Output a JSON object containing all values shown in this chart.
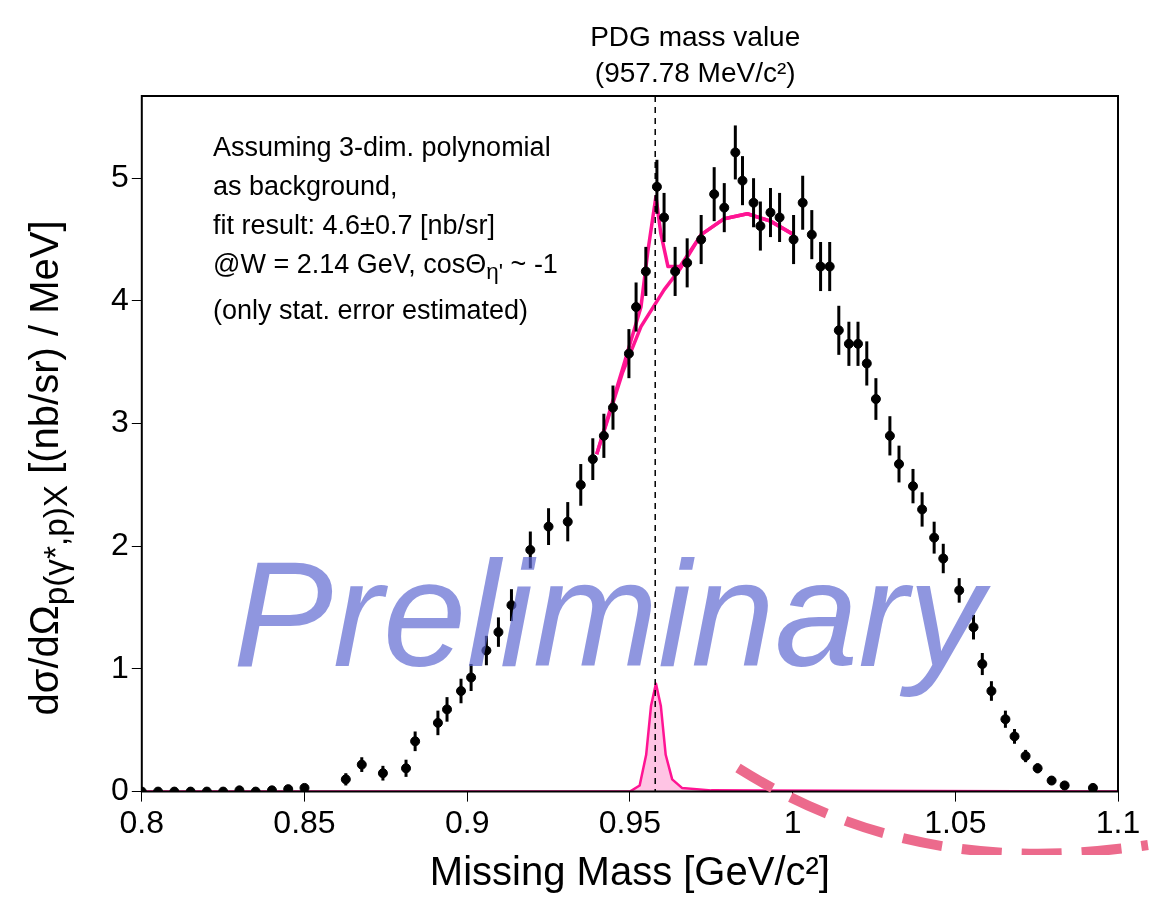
{
  "chart_data": {
    "type": "scatter",
    "xlabel": "Missing Mass [GeV/c²]",
    "ylabel": "dσ/dΩ$_{p(γ*,p)X}$ [(nb/sr) / MeV]",
    "xlim": [
      0.8,
      1.1
    ],
    "xticks": [
      0.8,
      0.85,
      0.9,
      0.95,
      1,
      1.05,
      1.1
    ],
    "ylim": [
      0,
      5.67
    ],
    "yticks": [
      0,
      1,
      2,
      3,
      4,
      5
    ],
    "grid": false,
    "annotations": [
      "Assuming 3-dim. polynomial",
      "as background,",
      "fit result: 4.6±0.7 [nb/sr]",
      "@W = 2.14 GeV, cosΘ$_{η'}$ ~ -1",
      "(only stat. error estimated)",
      "Preliminary"
    ],
    "ref_lines": [
      {
        "axis": "x",
        "value": 0.95778,
        "label": "PDG mass value\n(957.78 MeV/c²)",
        "color": "#000000",
        "line_style": "dashed"
      }
    ],
    "series": [
      {
        "color": "#000000",
        "marker": "circle",
        "x": [
          0.8,
          0.805,
          0.81,
          0.815,
          0.82,
          0.825,
          0.83,
          0.835,
          0.84,
          0.845,
          0.85,
          0.8627,
          0.8676,
          0.8741,
          0.8812,
          0.884,
          0.891,
          0.8938,
          0.8981,
          0.9012,
          0.9059,
          0.9096,
          0.9136,
          0.9194,
          0.925,
          0.9309,
          0.9349,
          0.9386,
          0.942,
          0.9448,
          0.9497,
          0.9519,
          0.9549,
          0.9583,
          0.9605,
          0.9639,
          0.9676,
          0.9719,
          0.9759,
          0.979,
          0.9824,
          0.9846,
          0.988,
          0.9901,
          0.9932,
          0.996,
          1.0003,
          1.0031,
          1.0059,
          1.0086,
          1.0114,
          1.0142,
          1.0173,
          1.0201,
          1.0228,
          1.0256,
          1.0299,
          1.0327,
          1.037,
          1.0398,
          1.0435,
          1.0463,
          1.0512,
          1.0556,
          1.0583,
          1.0611,
          1.0654,
          1.0682,
          1.0716,
          1.0753,
          1.0796,
          1.0836,
          1.0923
        ],
        "values": [
          0,
          0,
          0,
          0,
          0,
          0,
          0.01,
          0,
          0.01,
          0.02,
          0.03,
          0.1,
          0.22,
          0.15,
          0.19,
          0.41,
          0.56,
          0.67,
          0.82,
          0.93,
          1.15,
          1.3,
          1.52,
          1.97,
          2.16,
          2.2,
          2.5,
          2.71,
          2.9,
          3.13,
          3.57,
          3.95,
          4.24,
          4.93,
          4.68,
          4.24,
          4.31,
          4.5,
          4.87,
          4.76,
          5.21,
          4.98,
          4.8,
          4.61,
          4.72,
          4.68,
          4.5,
          4.8,
          4.54,
          4.28,
          4.28,
          3.76,
          3.65,
          3.65,
          3.49,
          3.2,
          2.9,
          2.67,
          2.49,
          2.3,
          2.07,
          1.9,
          1.64,
          1.34,
          1.04,
          0.82,
          0.59,
          0.45,
          0.29,
          0.19,
          0.09,
          0.05,
          0.03
        ],
        "errors": [
          null,
          null,
          null,
          null,
          null,
          null,
          null,
          null,
          null,
          null,
          0.03,
          0.05,
          0.06,
          0.06,
          0.07,
          0.08,
          0.1,
          0.1,
          0.1,
          0.11,
          0.12,
          0.12,
          0.13,
          0.15,
          0.15,
          0.16,
          0.17,
          0.17,
          0.18,
          0.18,
          0.2,
          0.2,
          0.2,
          0.22,
          0.2,
          0.2,
          0.2,
          0.2,
          0.22,
          0.2,
          0.22,
          0.2,
          0.2,
          0.2,
          0.2,
          0.2,
          0.2,
          0.22,
          0.2,
          0.2,
          0.2,
          0.2,
          0.18,
          0.18,
          0.18,
          0.17,
          0.16,
          0.15,
          0.14,
          0.14,
          0.13,
          0.12,
          0.1,
          0.1,
          0.09,
          0.08,
          0.07,
          0.06,
          0.05,
          0.04,
          0.03,
          0.02,
          0.02
        ]
      },
      {
        "type": "line",
        "color": "#ff1493",
        "x": [
          0.9398,
          0.9478,
          0.9534,
          0.9555,
          0.958,
          0.9595,
          0.9617,
          0.9654,
          0.9719,
          0.979,
          0.9861,
          0.9932,
          1.0003
        ],
        "values": [
          2.75,
          3.45,
          3.95,
          4.4,
          4.85,
          4.55,
          4.28,
          4.28,
          4.54,
          4.67,
          4.71,
          4.65,
          4.54
        ]
      },
      {
        "type": "line",
        "color": "#ff1493",
        "x": [
          0.9398,
          0.9478,
          0.9534,
          0.9605,
          0.9654,
          0.9719,
          0.979,
          0.9861,
          0.9932,
          1.0003
        ],
        "values": [
          2.75,
          3.42,
          3.79,
          4.09,
          4.26,
          4.54,
          4.67,
          4.71,
          4.65,
          4.54
        ]
      },
      {
        "type": "area",
        "color": "#ff1493",
        "x": [
          0.8,
          0.95,
          0.953,
          0.955,
          0.9565,
          0.958,
          0.9595,
          0.961,
          0.963,
          0.966,
          0.975,
          1.1
        ],
        "values": [
          0,
          0,
          0.05,
          0.3,
          0.7,
          0.88,
          0.7,
          0.3,
          0.1,
          0.03,
          0.01,
          0
        ]
      }
    ]
  }
}
